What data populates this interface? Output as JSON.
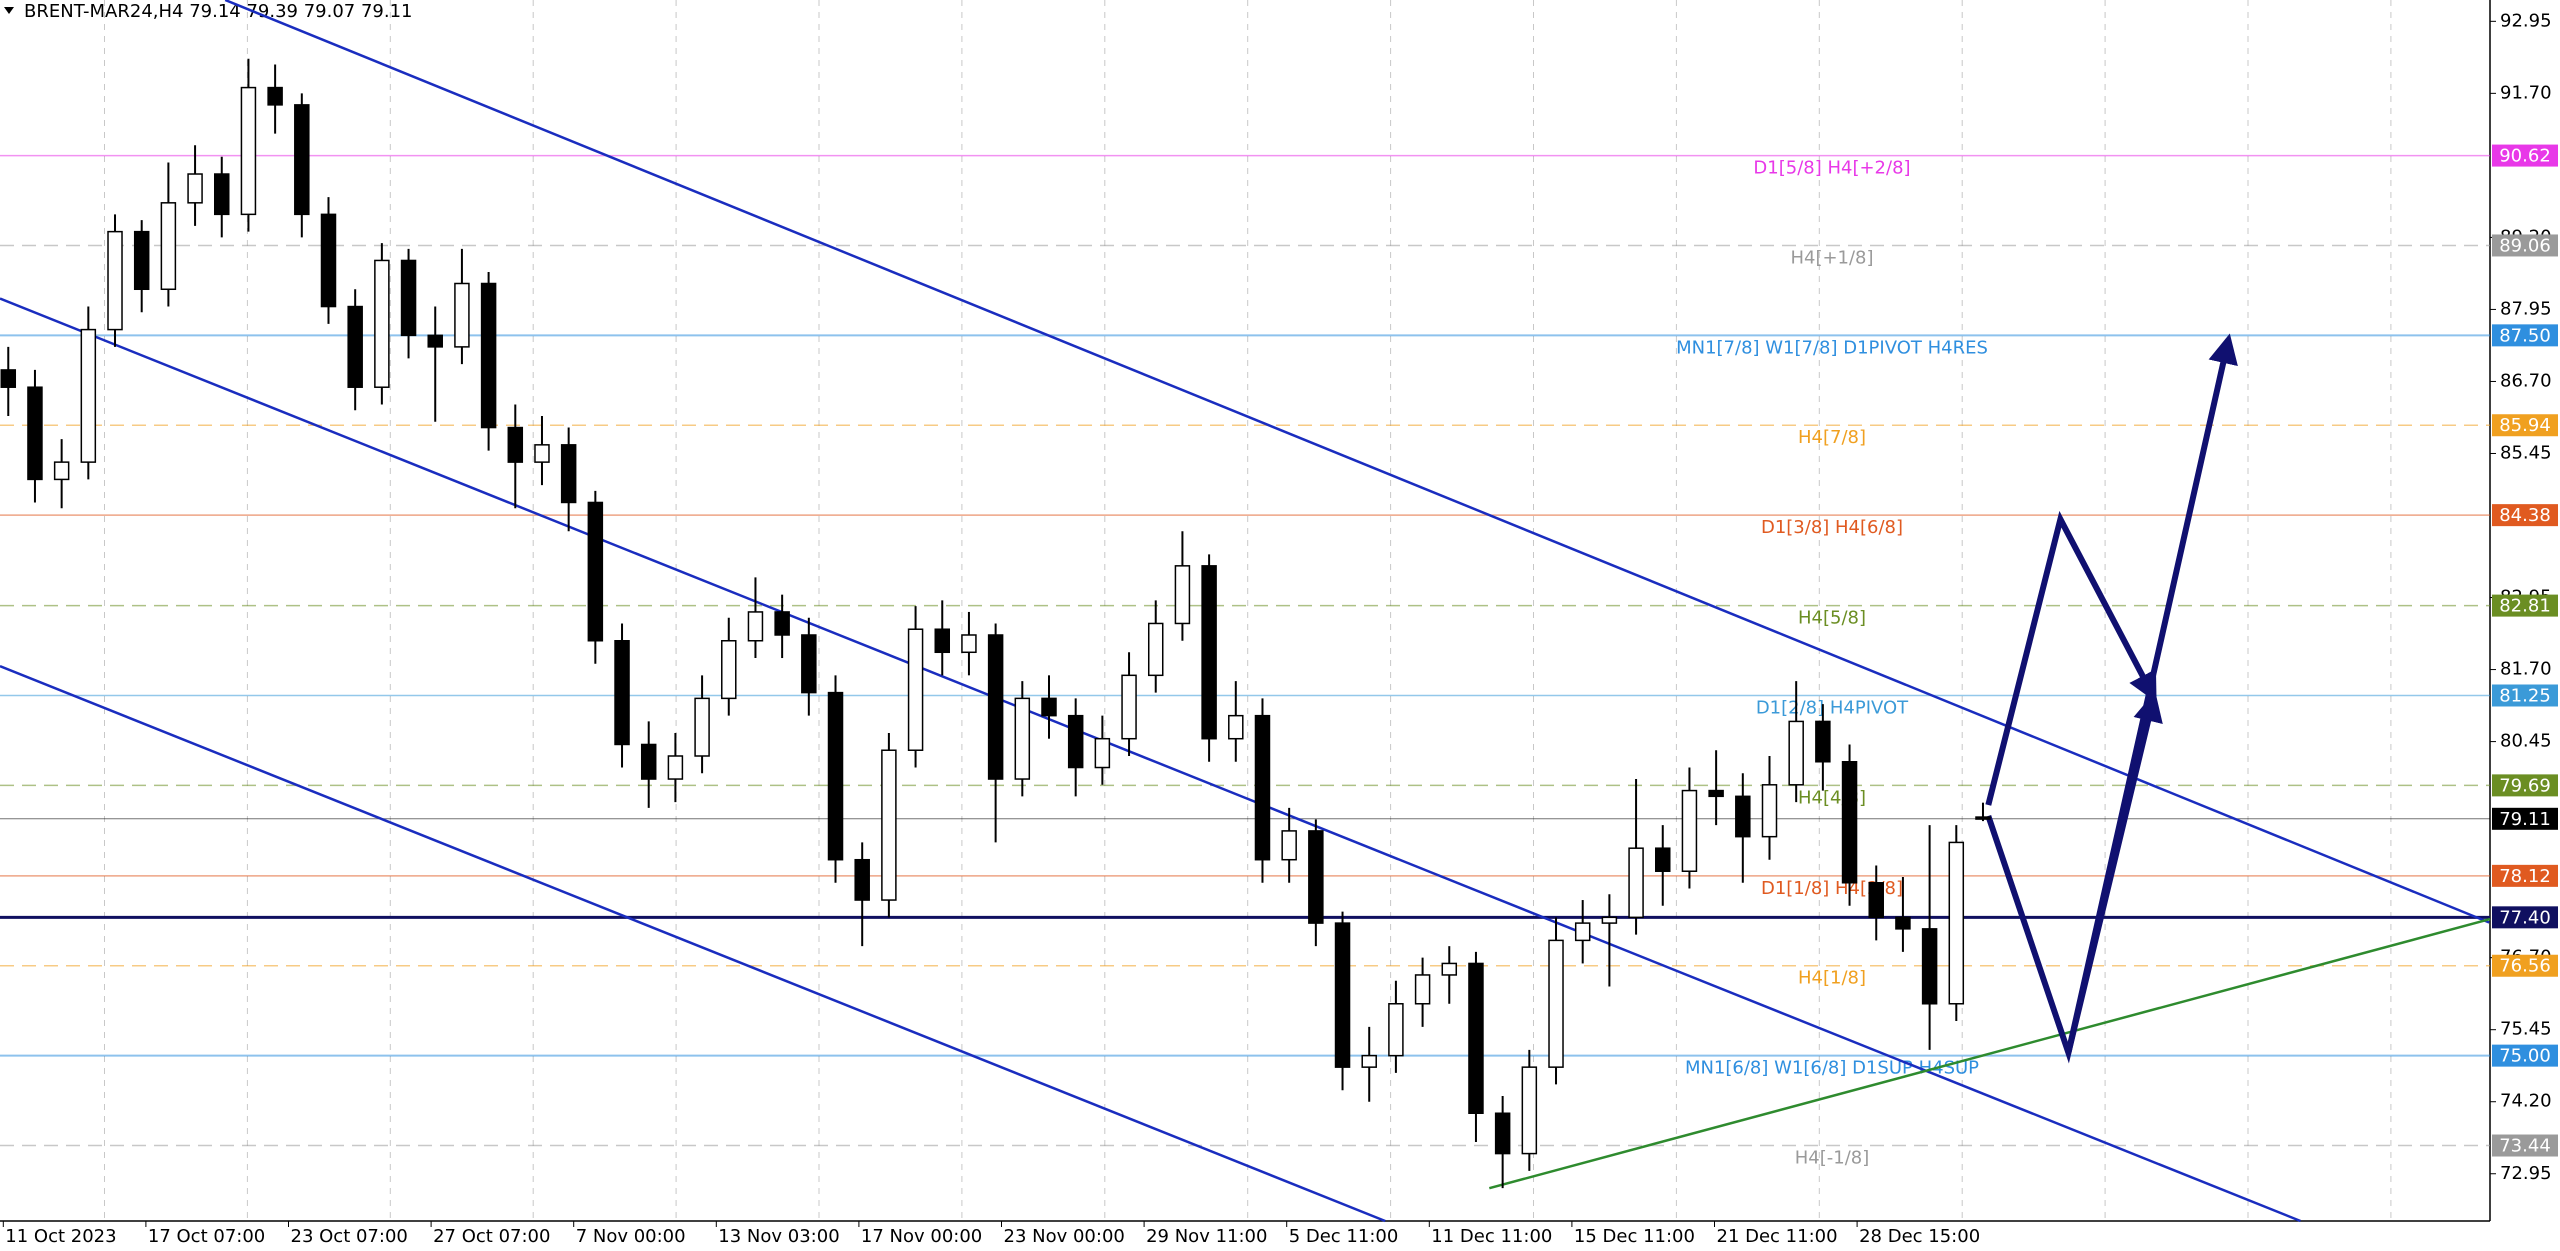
{
  "chart_data": {
    "type": "candlestick",
    "title": "BRENT-MAR24,H4  79.14 79.39 79.07 79.11",
    "x_labels": [
      "11 Oct 2023",
      "17 Oct 07:00",
      "23 Oct 07:00",
      "27 Oct 07:00",
      "7 Nov 00:00",
      "13 Nov 03:00",
      "17 Nov 00:00",
      "23 Nov 00:00",
      "29 Nov 11:00",
      "5 Dec 11:00",
      "11 Dec 11:00",
      "15 Dec 11:00",
      "21 Dec 11:00",
      "28 Dec 15:00"
    ],
    "xlim": [
      -0.31,
      93.0
    ],
    "ylim": [
      72.13,
      93.32
    ],
    "yticks": [
      92.95,
      {
        "value": 91.7,
        "label": "91.70"
      },
      {
        "value": 89.2,
        "label": "89.20"
      },
      87.95,
      {
        "value": 86.7,
        "label": "86.70"
      },
      85.45,
      82.95,
      {
        "value": 81.7,
        "label": "81.70"
      },
      80.45,
      {
        "value": 76.7,
        "label": "76.70"
      },
      75.45,
      {
        "value": 74.2,
        "label": "74.20"
      },
      72.95
    ],
    "open": [
      86.9,
      86.6,
      85.0,
      85.3,
      87.6,
      89.3,
      88.3,
      89.8,
      90.3,
      89.6,
      91.8,
      91.5,
      89.6,
      88.0,
      86.6,
      88.8,
      87.5,
      87.3,
      88.4,
      85.9,
      85.3,
      85.6,
      84.6,
      82.2,
      80.4,
      79.8,
      80.2,
      81.2,
      82.2,
      82.7,
      82.3,
      81.3,
      78.4,
      77.7,
      80.3,
      82.4,
      82.0,
      82.3,
      79.8,
      81.2,
      80.9,
      80.0,
      80.5,
      81.6,
      82.5,
      83.5,
      80.5,
      80.9,
      78.4,
      78.9,
      77.3,
      74.8,
      75.0,
      75.9,
      76.4,
      76.6,
      74.0,
      73.3,
      74.8,
      77.0,
      77.3,
      77.4,
      78.6,
      78.2,
      79.6,
      79.5,
      78.8,
      79.7,
      80.8,
      80.1,
      78.0,
      77.4,
      77.2,
      75.9,
      79.14
    ],
    "high": [
      87.3,
      86.9,
      85.7,
      88.0,
      89.6,
      89.5,
      90.5,
      90.8,
      90.6,
      92.3,
      92.2,
      91.7,
      89.9,
      88.3,
      89.1,
      89.0,
      88.0,
      89.0,
      88.6,
      86.3,
      86.1,
      85.9,
      84.8,
      82.5,
      80.8,
      80.6,
      81.6,
      82.6,
      83.3,
      83.0,
      82.6,
      81.6,
      78.7,
      80.6,
      82.8,
      82.9,
      82.7,
      82.5,
      81.5,
      81.6,
      81.2,
      80.9,
      82.0,
      82.9,
      84.1,
      83.7,
      81.5,
      81.2,
      79.3,
      79.1,
      77.5,
      75.5,
      76.3,
      76.7,
      76.9,
      76.8,
      74.3,
      75.1,
      77.4,
      77.7,
      77.8,
      79.8,
      79.0,
      80.0,
      80.3,
      79.9,
      80.2,
      81.5,
      81.1,
      80.4,
      78.3,
      78.1,
      79.0,
      79.0,
      79.39
    ],
    "low": [
      86.1,
      84.6,
      84.5,
      85.0,
      87.3,
      87.9,
      88.0,
      89.4,
      89.2,
      89.3,
      91.0,
      89.2,
      87.7,
      86.2,
      86.3,
      87.1,
      86.0,
      87.0,
      85.5,
      84.5,
      84.9,
      84.1,
      81.8,
      80.0,
      79.3,
      79.4,
      79.9,
      80.9,
      81.9,
      81.9,
      80.9,
      78.0,
      76.9,
      77.4,
      80.0,
      81.6,
      81.6,
      78.7,
      79.5,
      80.5,
      79.5,
      79.7,
      80.2,
      81.3,
      82.2,
      80.1,
      80.1,
      78.0,
      78.0,
      76.9,
      74.4,
      74.2,
      74.7,
      75.5,
      75.9,
      73.5,
      72.7,
      73.0,
      74.5,
      76.6,
      76.2,
      77.1,
      77.6,
      77.9,
      79.0,
      78.0,
      78.4,
      79.4,
      79.6,
      77.6,
      77.0,
      76.8,
      75.1,
      75.6,
      79.07
    ],
    "close": [
      86.6,
      85.0,
      85.3,
      87.6,
      89.3,
      88.3,
      89.8,
      90.3,
      89.6,
      91.8,
      91.5,
      89.6,
      88.0,
      86.6,
      88.8,
      87.5,
      87.3,
      88.4,
      85.9,
      85.3,
      85.6,
      84.6,
      82.2,
      80.4,
      79.8,
      80.2,
      81.2,
      82.2,
      82.7,
      82.3,
      81.3,
      78.4,
      77.7,
      80.3,
      82.4,
      82.0,
      82.3,
      79.8,
      81.2,
      80.9,
      80.0,
      80.5,
      81.6,
      82.5,
      83.5,
      80.5,
      80.9,
      78.4,
      78.9,
      77.3,
      74.8,
      75.0,
      75.9,
      76.4,
      76.6,
      74.0,
      73.3,
      74.8,
      77.0,
      77.3,
      77.4,
      78.6,
      78.2,
      79.6,
      79.5,
      78.8,
      79.7,
      80.8,
      80.1,
      78.0,
      77.4,
      77.2,
      75.9,
      78.7,
      79.11
    ],
    "levels": {
      "values": [
        90.62,
        89.06,
        87.5,
        85.94,
        84.38,
        82.81,
        81.25,
        79.69,
        79.11,
        78.12,
        77.4,
        76.56,
        75,
        73.44
      ],
      "value_labels": [
        "90.62",
        "89.06",
        "87.50",
        "85.94",
        "84.38",
        "82.81",
        "81.25",
        "79.69",
        "79.11",
        "78.12",
        "77.40",
        "76.56",
        "75.00",
        "73.44"
      ],
      "names": [
        "D1[5/8] H4[+2/8]",
        "H4[+1/8]",
        "MN1[7/8] W1[7/8] D1PIVOT H4RES",
        "H4[7/8]",
        "D1[3/8] H4[6/8]",
        "H4[5/8]",
        "D1[2/8] H4PIVOT",
        "H4[4/8]",
        null,
        "D1[1/8] H4[2/8]",
        null,
        "H4[1/8]",
        "MN1[6/8] W1[6/8] D1SUP H4SUP",
        "H4[-1/8]"
      ],
      "colors": [
        "#e838e8",
        "#9a9a9a",
        "#2f8fdf",
        "#f0a020",
        "#e05a20",
        "#6b8e23",
        "#3b9ad8",
        "#6b8e23",
        "#000000",
        "#e05a20",
        "#101060",
        "#f0a020",
        "#2f8fdf",
        "#9a9a9a"
      ],
      "dashed": [
        false,
        true,
        false,
        true,
        false,
        true,
        false,
        true,
        false,
        false,
        false,
        true,
        false,
        true
      ],
      "widths": [
        1.5,
        1.5,
        2,
        1.5,
        1.5,
        1.5,
        1.5,
        1.5,
        1,
        1.5,
        3,
        1.5,
        2,
        1.5
      ]
    },
    "drawings": [
      {
        "color": "#1a2dbf",
        "arrow": false,
        "points": [
          [
            8.13,
            93.32
          ],
          [
            92.97,
            77.31
          ]
        ]
      },
      {
        "color": "#1a2dbf",
        "arrow": false,
        "points": [
          [
            -0.31,
            88.14
          ],
          [
            85.9,
            72.13
          ]
        ]
      },
      {
        "color": "#1a2dbf",
        "arrow": false,
        "points": [
          [
            -0.31,
            81.76
          ],
          [
            51.6,
            72.13
          ]
        ]
      },
      {
        "color": "#2e8b2e",
        "arrow": false,
        "points": [
          [
            55.5,
            72.7
          ],
          [
            93.0,
            77.37
          ]
        ]
      },
      {
        "color": "#101070",
        "arrow": true,
        "points": [
          [
            74.2,
            79.35
          ],
          [
            76.9,
            84.31
          ],
          [
            80.4,
            81.22
          ]
        ]
      },
      {
        "color": "#101070",
        "arrow": true,
        "points": [
          [
            74.2,
            79.16
          ],
          [
            77.2,
            75.05
          ],
          [
            80.4,
            81.22
          ]
        ]
      },
      {
        "color": "#101070",
        "arrow": true,
        "points": [
          [
            77.2,
            75.05
          ],
          [
            83.2,
            87.43
          ]
        ]
      }
    ]
  }
}
